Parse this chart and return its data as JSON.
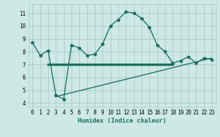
{
  "xlabel": "Humidex (Indice chaleur)",
  "bg_color": "#cde8e5",
  "grid_color": "#a8ccc9",
  "line_color": "#1a7060",
  "xlim": [
    -0.5,
    23.5
  ],
  "ylim": [
    3.7,
    11.7
  ],
  "yticks": [
    4,
    5,
    6,
    7,
    8,
    9,
    10,
    11
  ],
  "xticks": [
    0,
    1,
    2,
    3,
    4,
    5,
    6,
    7,
    8,
    9,
    10,
    11,
    12,
    13,
    14,
    15,
    16,
    17,
    18,
    19,
    20,
    21,
    22,
    23
  ],
  "curve1_x": [
    0,
    1,
    2,
    3,
    4,
    5,
    6,
    7,
    8,
    9,
    10,
    11,
    12,
    13,
    14,
    15,
    16,
    17,
    18,
    19,
    20,
    21,
    22,
    23
  ],
  "curve1_y": [
    8.7,
    7.7,
    8.1,
    4.6,
    4.3,
    8.5,
    8.3,
    7.7,
    7.8,
    8.6,
    10.0,
    10.5,
    11.1,
    11.0,
    10.6,
    9.9,
    8.5,
    8.0,
    7.1,
    7.3,
    7.6,
    7.1,
    7.5,
    7.4
  ],
  "line2_x": [
    2,
    18
  ],
  "line2_y": [
    7.0,
    7.0
  ],
  "line3_x": [
    3,
    23
  ],
  "line3_y": [
    4.5,
    7.5
  ],
  "xlabel_fontsize": 6.5,
  "tick_fontsize": 5.5
}
